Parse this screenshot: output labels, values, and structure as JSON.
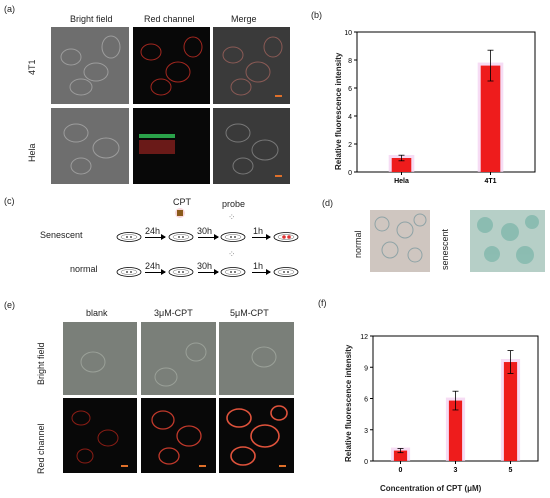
{
  "panels": {
    "a": {
      "letter": "(a)",
      "columns": [
        "Bright field",
        "Red channel",
        "Merge"
      ],
      "rows": [
        "4T1",
        "Hela"
      ]
    },
    "b": {
      "letter": "(b)",
      "ylabel": "Relative fluorescence intensity",
      "categories": [
        "Hela",
        "4T1"
      ],
      "yticks": [
        "0",
        "2",
        "4",
        "6",
        "8",
        "10"
      ]
    },
    "c": {
      "letter": "(c)",
      "row_labels": [
        "Senescent",
        "normal"
      ],
      "top_labels": [
        "CPT",
        "probe"
      ],
      "times": [
        "24h",
        "30h",
        "1h"
      ]
    },
    "d": {
      "letter": "(d)",
      "labels": [
        "normal",
        "senescent"
      ]
    },
    "e": {
      "letter": "(e)",
      "columns": [
        "blank",
        "3μM-CPT",
        "5μM-CPT"
      ],
      "rows": [
        "Bright field",
        "Red channel"
      ]
    },
    "f": {
      "letter": "(f)",
      "ylabel": "Relative fluorescence intensity",
      "xlabel": "Concentration of CPT (μM)",
      "categories": [
        "0",
        "3",
        "5"
      ],
      "yticks": [
        "0",
        "3",
        "6",
        "9",
        "12"
      ]
    }
  },
  "chart_data": [
    {
      "type": "bar",
      "panel": "b",
      "categories": [
        "Hela",
        "4T1"
      ],
      "values": [
        1.0,
        7.6
      ],
      "errors": [
        0.2,
        1.1
      ],
      "ylabel": "Relative fluorescence intensity",
      "ylim": [
        0,
        10
      ],
      "bar_color": "#ee1c1c"
    },
    {
      "type": "bar",
      "panel": "f",
      "categories": [
        "0",
        "3",
        "5"
      ],
      "values": [
        1.0,
        5.8,
        9.5
      ],
      "errors": [
        0.2,
        0.9,
        1.1
      ],
      "ylabel": "Relative fluorescence intensity",
      "xlabel": "Concentration of CPT (μM)",
      "ylim": [
        0,
        12
      ],
      "bar_color": "#ee1c1c"
    }
  ]
}
